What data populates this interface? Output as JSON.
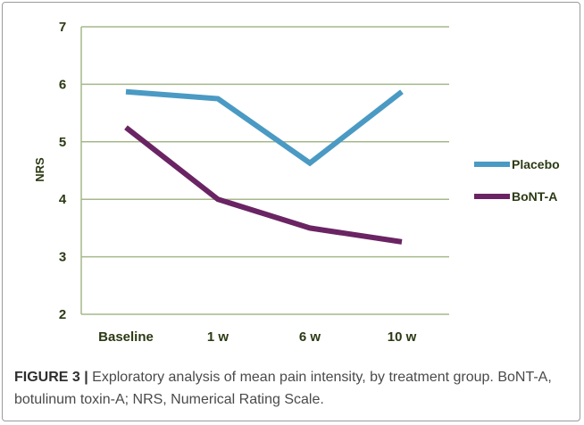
{
  "chart_data": {
    "type": "line",
    "categories": [
      "Baseline",
      "1 w",
      "6 w",
      "10 w"
    ],
    "series": [
      {
        "name": "Placebo",
        "values": [
          5.87,
          5.75,
          4.63,
          5.87
        ],
        "color": "#4a9ac4"
      },
      {
        "name": "BoNT-A",
        "values": [
          5.25,
          4.0,
          3.5,
          3.26
        ],
        "color": "#6a2463"
      }
    ],
    "ylabel": "NRS",
    "xlabel": "",
    "ylim": [
      2,
      7
    ],
    "yticks": [
      2,
      3,
      4,
      5,
      6,
      7
    ],
    "grid": true,
    "legend_position": "right",
    "axis_text_color": "#2c3a14",
    "grid_color": "#a5b88a"
  },
  "caption": {
    "label": "FIGURE 3 |",
    "text": " Exploratory analysis of mean pain intensity, by treatment group. BoNT-A, botulinum toxin-A; NRS, Numerical Rating Scale."
  }
}
